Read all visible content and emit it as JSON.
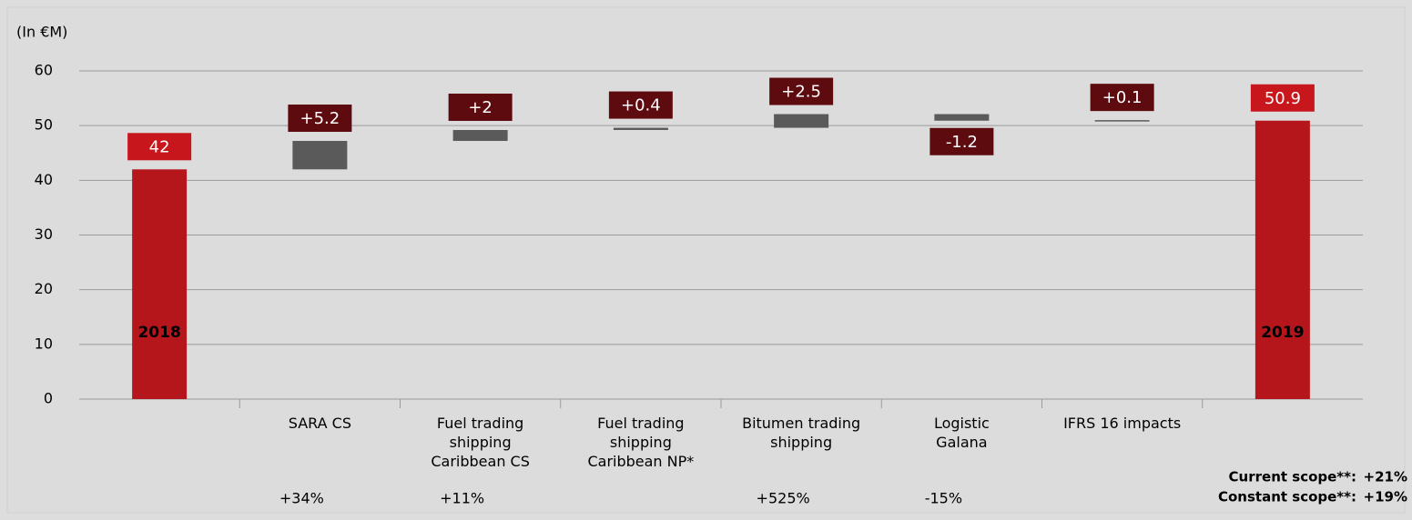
{
  "chart_data": {
    "type": "waterfall",
    "axis_label": "(In €M)",
    "categories": [
      "2018",
      "SARA CS",
      "Fuel trading\nshipping\nCaribbean CS",
      "Fuel trading\nshipping\nCaribbean NP*",
      "Bitumen trading\nshipping",
      "Logistic\nGalana",
      "IFRS 16 impacts",
      "2019"
    ],
    "values": [
      42,
      5.2,
      2,
      0.4,
      2.5,
      -1.2,
      0.1,
      50.9
    ],
    "value_labels": [
      "42",
      "+5.2",
      "+2",
      "+0.4",
      "+2.5",
      "-1.2",
      "+0.1",
      "50.9"
    ],
    "totals": [
      true,
      false,
      false,
      false,
      false,
      false,
      false,
      true
    ],
    "growth": [
      null,
      "+34%",
      "+11%",
      null,
      "+525%",
      "-15%",
      null,
      null
    ],
    "total_color": "#b5161c",
    "delta_color": "#5a5a5a",
    "total_label_color": "#c8161d",
    "delta_label_color": "#5e0b10",
    "ylim": [
      0,
      60
    ],
    "yticks": [
      0,
      10,
      20,
      30,
      40,
      50,
      60
    ],
    "grid": true,
    "footnotes": [
      {
        "label": "Current scope**:",
        "value": "+21%"
      },
      {
        "label": "Constant scope**:",
        "value": "+19%"
      }
    ]
  }
}
